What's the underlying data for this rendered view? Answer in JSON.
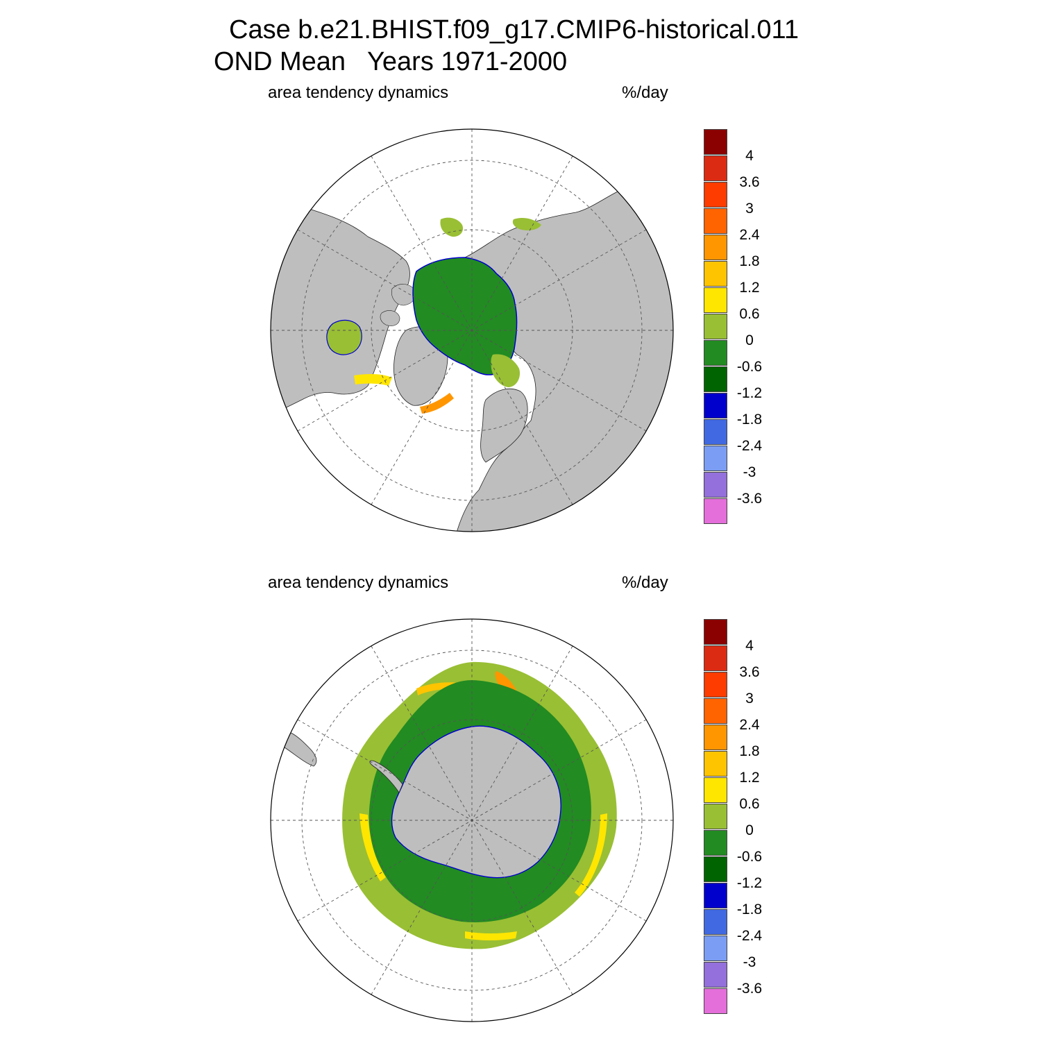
{
  "title": {
    "line1": "Case b.e21.BHIST.f09_g17.CMIP6-historical.011",
    "line2": "OND Mean   Years 1971-2000"
  },
  "panels": [
    {
      "id": "north",
      "variable_label": "area tendency dynamics",
      "units_label": "%/day"
    },
    {
      "id": "south",
      "variable_label": "area tendency dynamics",
      "units_label": "%/day"
    }
  ],
  "colorbar": {
    "colors": [
      "#8b0000",
      "#dc2b13",
      "#ff3c00",
      "#ff6400",
      "#ff9600",
      "#ffc400",
      "#ffe600",
      "#99bf34",
      "#228b22",
      "#006400",
      "#0000cc",
      "#4169e1",
      "#7b9df3",
      "#9370db",
      "#e46fdb"
    ],
    "labels": [
      "4",
      "3.6",
      "3",
      "2.4",
      "1.8",
      "1.2",
      "0.6",
      "0",
      "-0.6",
      "-1.2",
      "-1.8",
      "-2.4",
      "-3",
      "-3.6"
    ]
  },
  "map_colors": {
    "land": "#bebebe",
    "ocean": "#ffffff",
    "grid": "#555555"
  }
}
